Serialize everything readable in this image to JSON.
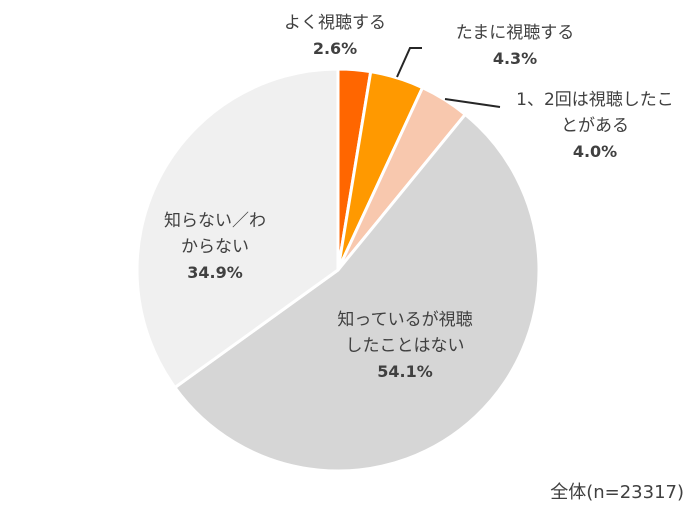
{
  "chart_data": {
    "type": "pie",
    "title": "",
    "start_angle_deg": 0,
    "direction": "clockwise",
    "slices": [
      {
        "label_lines": [
          "よく視聴する"
        ],
        "label": "よく視聴する",
        "value": 2.6,
        "value_label": "2.6%",
        "color": "#FF6600"
      },
      {
        "label_lines": [
          "たまに視聴する"
        ],
        "label": "たまに視聴する",
        "value": 4.3,
        "value_label": "4.3%",
        "color": "#FF9900"
      },
      {
        "label_lines": [
          "1、2回は視聴したこ",
          "とがある"
        ],
        "label": "1、2回は視聴したことがある",
        "value": 4.0,
        "value_label": "4.0%",
        "color": "#F8C8AE"
      },
      {
        "label_lines": [
          "知っているが視聴",
          "したことはない"
        ],
        "label": "知っているが視聴したことはない",
        "value": 54.1,
        "value_label": "54.1%",
        "color": "#D6D6D6"
      },
      {
        "label_lines": [
          "知らない／わ",
          "からない"
        ],
        "label": "知らない／わからない",
        "value": 34.9,
        "value_label": "34.9%",
        "color": "#F0F0F0"
      }
    ],
    "legend": "none",
    "annotations": [
      "全体(n=23317)"
    ]
  },
  "footer": {
    "sample": "全体(n=23317)"
  }
}
